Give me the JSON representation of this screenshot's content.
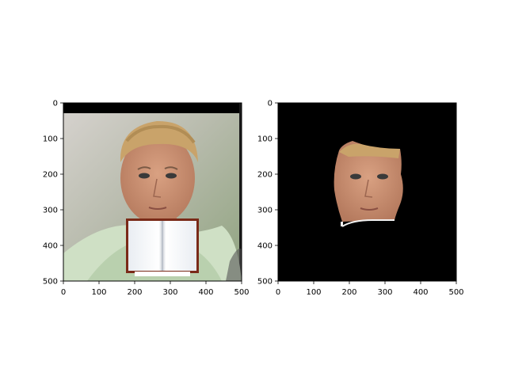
{
  "figure": {
    "panels": [
      {
        "id": "left",
        "description_kind": "photo with occlusion",
        "x_ticks": [
          "0",
          "100",
          "200",
          "300",
          "400",
          "500"
        ],
        "y_ticks": [
          "0",
          "100",
          "200",
          "300",
          "400",
          "500"
        ],
        "xlim": [
          0,
          500
        ],
        "ylim": [
          500,
          0
        ]
      },
      {
        "id": "right",
        "description_kind": "face segmentation mask",
        "x_ticks": [
          "0",
          "100",
          "200",
          "300",
          "400",
          "500"
        ],
        "y_ticks": [
          "0",
          "100",
          "200",
          "300",
          "400",
          "500"
        ],
        "xlim": [
          0,
          500
        ],
        "ylim": [
          500,
          0
        ]
      }
    ]
  },
  "colors": {
    "mask_background": "#000000",
    "book_cover": "#7a2a18",
    "book_page": "#f4f6f8",
    "skin": "#c98e72",
    "hair": "#c9a36a",
    "shirt": "#cfe0c5",
    "photo_bg": "#a8b89a"
  }
}
